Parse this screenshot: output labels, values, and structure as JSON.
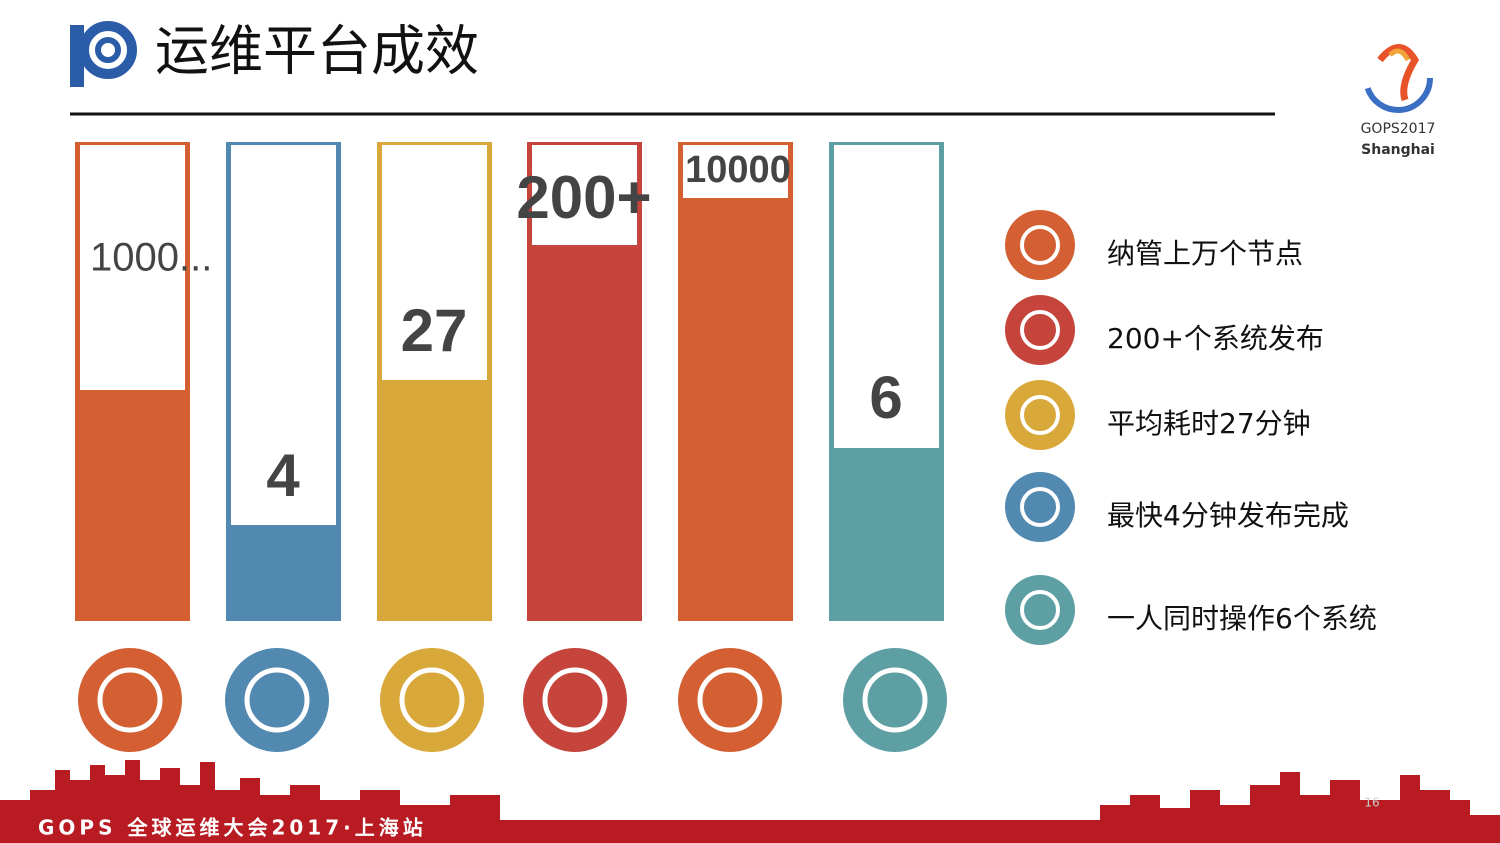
{
  "header": {
    "title": "运维平台成效"
  },
  "logo": {
    "line1": "GOPS2017",
    "line2": "Shanghai"
  },
  "bars": [
    {
      "label": "1000..."
    },
    {
      "label": "4"
    },
    {
      "label": "27"
    },
    {
      "label": "200+"
    },
    {
      "label": "10000"
    },
    {
      "label": "6"
    }
  ],
  "legend": [
    {
      "text": "纳管上万个节点"
    },
    {
      "text": "200+个系统发布"
    },
    {
      "text": "平均耗时27分钟"
    },
    {
      "text": "最快4分钟发布完成"
    },
    {
      "text": "一人同时操作6个系统"
    }
  ],
  "footer": {
    "text": "GOPS 全球运维大会2017·上海站",
    "page": "16"
  }
}
